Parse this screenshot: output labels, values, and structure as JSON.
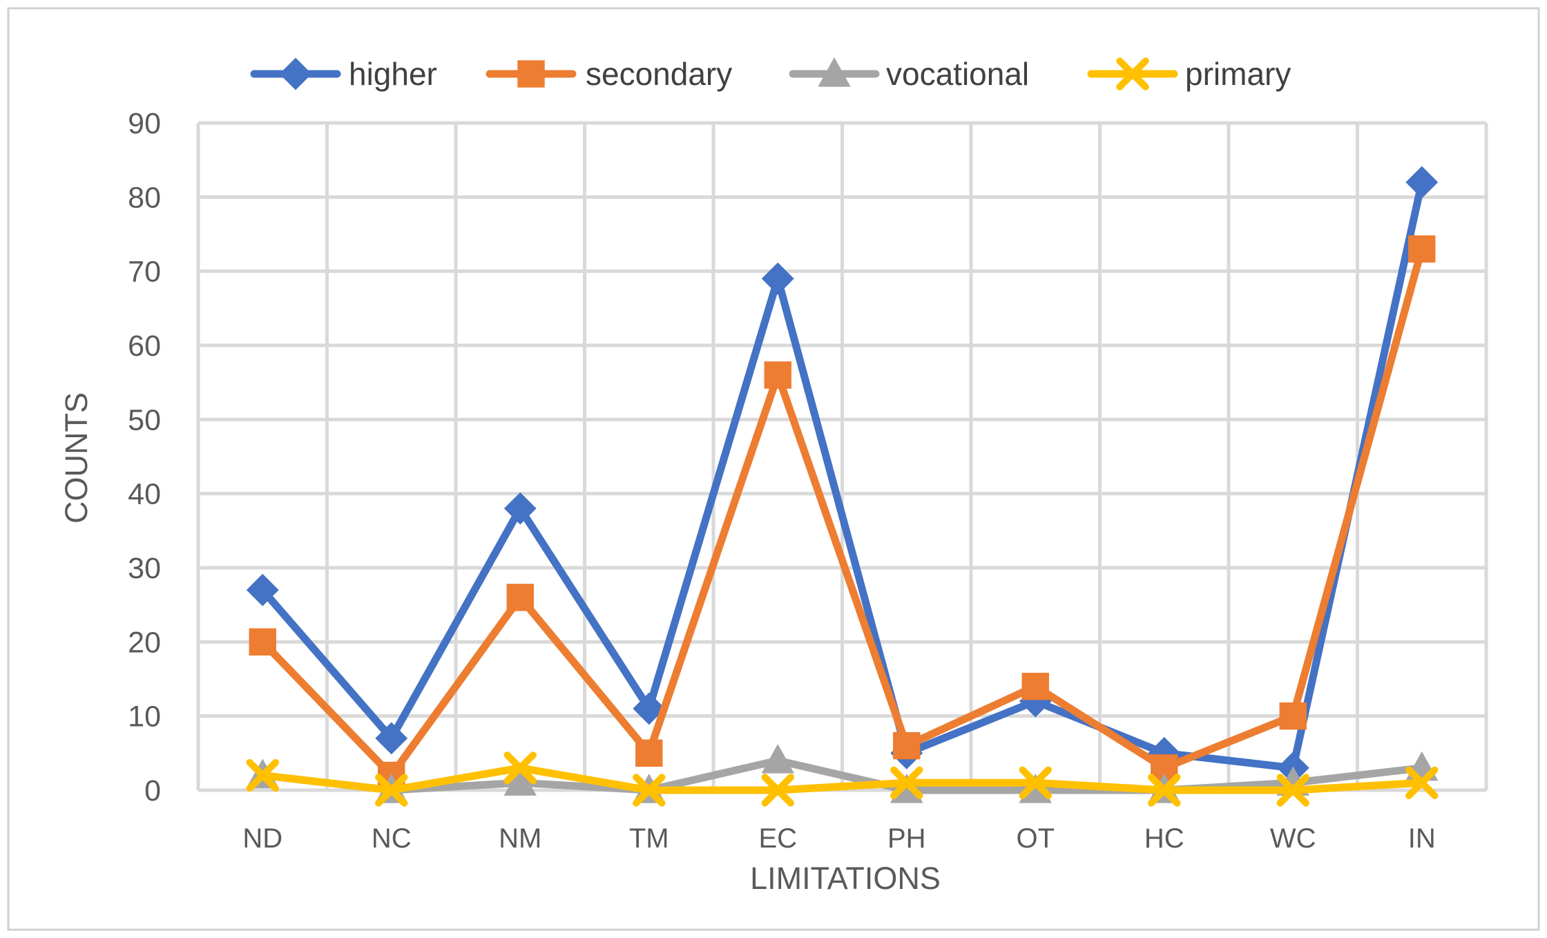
{
  "chart_data": {
    "type": "line",
    "title": "",
    "xlabel": "LIMITATIONS",
    "ylabel": "COUNTS",
    "categories": [
      "ND",
      "NC",
      "NM",
      "TM",
      "EC",
      "PH",
      "OT",
      "HC",
      "WC",
      "IN"
    ],
    "ylim": [
      0,
      90
    ],
    "yticks": [
      0,
      10,
      20,
      30,
      40,
      50,
      60,
      70,
      80,
      90
    ],
    "grid": true,
    "legend_position": "top",
    "series": [
      {
        "name": "higher",
        "color": "#4472C4",
        "marker": "diamond",
        "values": [
          27,
          7,
          38,
          11,
          69,
          5,
          12,
          5,
          3,
          82
        ]
      },
      {
        "name": "secondary",
        "color": "#ED7D31",
        "marker": "square",
        "values": [
          20,
          2,
          26,
          5,
          56,
          6,
          14,
          3,
          10,
          73
        ]
      },
      {
        "name": "vocational",
        "color": "#A5A5A5",
        "marker": "triangle",
        "values": [
          2,
          0,
          1,
          0,
          4,
          0,
          0,
          0,
          1,
          3
        ]
      },
      {
        "name": "primary",
        "color": "#FFC000",
        "marker": "x",
        "values": [
          2,
          0,
          3,
          0,
          0,
          1,
          1,
          0,
          0,
          1
        ]
      }
    ]
  }
}
